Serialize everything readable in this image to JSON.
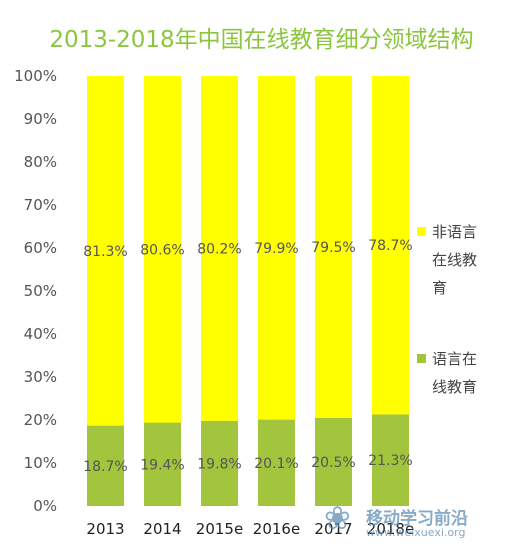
{
  "title": "2013-2018年中国在线教育细分领域结构",
  "chart_data": {
    "type": "bar",
    "stacked": true,
    "title": "2013-2018年中国在线教育细分领域结构",
    "categories": [
      "2013",
      "2014",
      "2015e",
      "2016e",
      "2017",
      "2018e"
    ],
    "series": [
      {
        "name": "语言在线教育",
        "values": [
          18.7,
          19.4,
          19.8,
          20.1,
          20.5,
          21.3
        ],
        "labels": [
          "18.7%",
          "19.4%",
          "19.8%",
          "20.1%",
          "20.5%",
          "21.3%"
        ],
        "color": "#a2c53d"
      },
      {
        "name": "非语言在线教育",
        "values": [
          81.3,
          80.6,
          80.2,
          79.9,
          79.5,
          78.7
        ],
        "labels": [
          "81.3%",
          "80.6%",
          "80.2%",
          "79.9%",
          "79.5%",
          "78.7%"
        ],
        "color": "#ffff00"
      }
    ],
    "ylim": [
      0,
      100
    ],
    "yticks": [
      "0%",
      "10%",
      "20%",
      "30%",
      "40%",
      "50%",
      "60%",
      "70%",
      "80%",
      "90%",
      "100%"
    ],
    "grid": false,
    "legend_position": "right"
  },
  "legend": {
    "items": [
      {
        "lines": [
          "非语言",
          "在线教",
          "育"
        ],
        "color": "#ffff00"
      },
      {
        "lines": [
          "语言在",
          "线教育"
        ],
        "color": "#a2c53d"
      }
    ]
  },
  "watermark": {
    "main": "移动学习前沿",
    "url": "www.weixuexi.org",
    "icon": "weixuexi-logo-icon"
  }
}
